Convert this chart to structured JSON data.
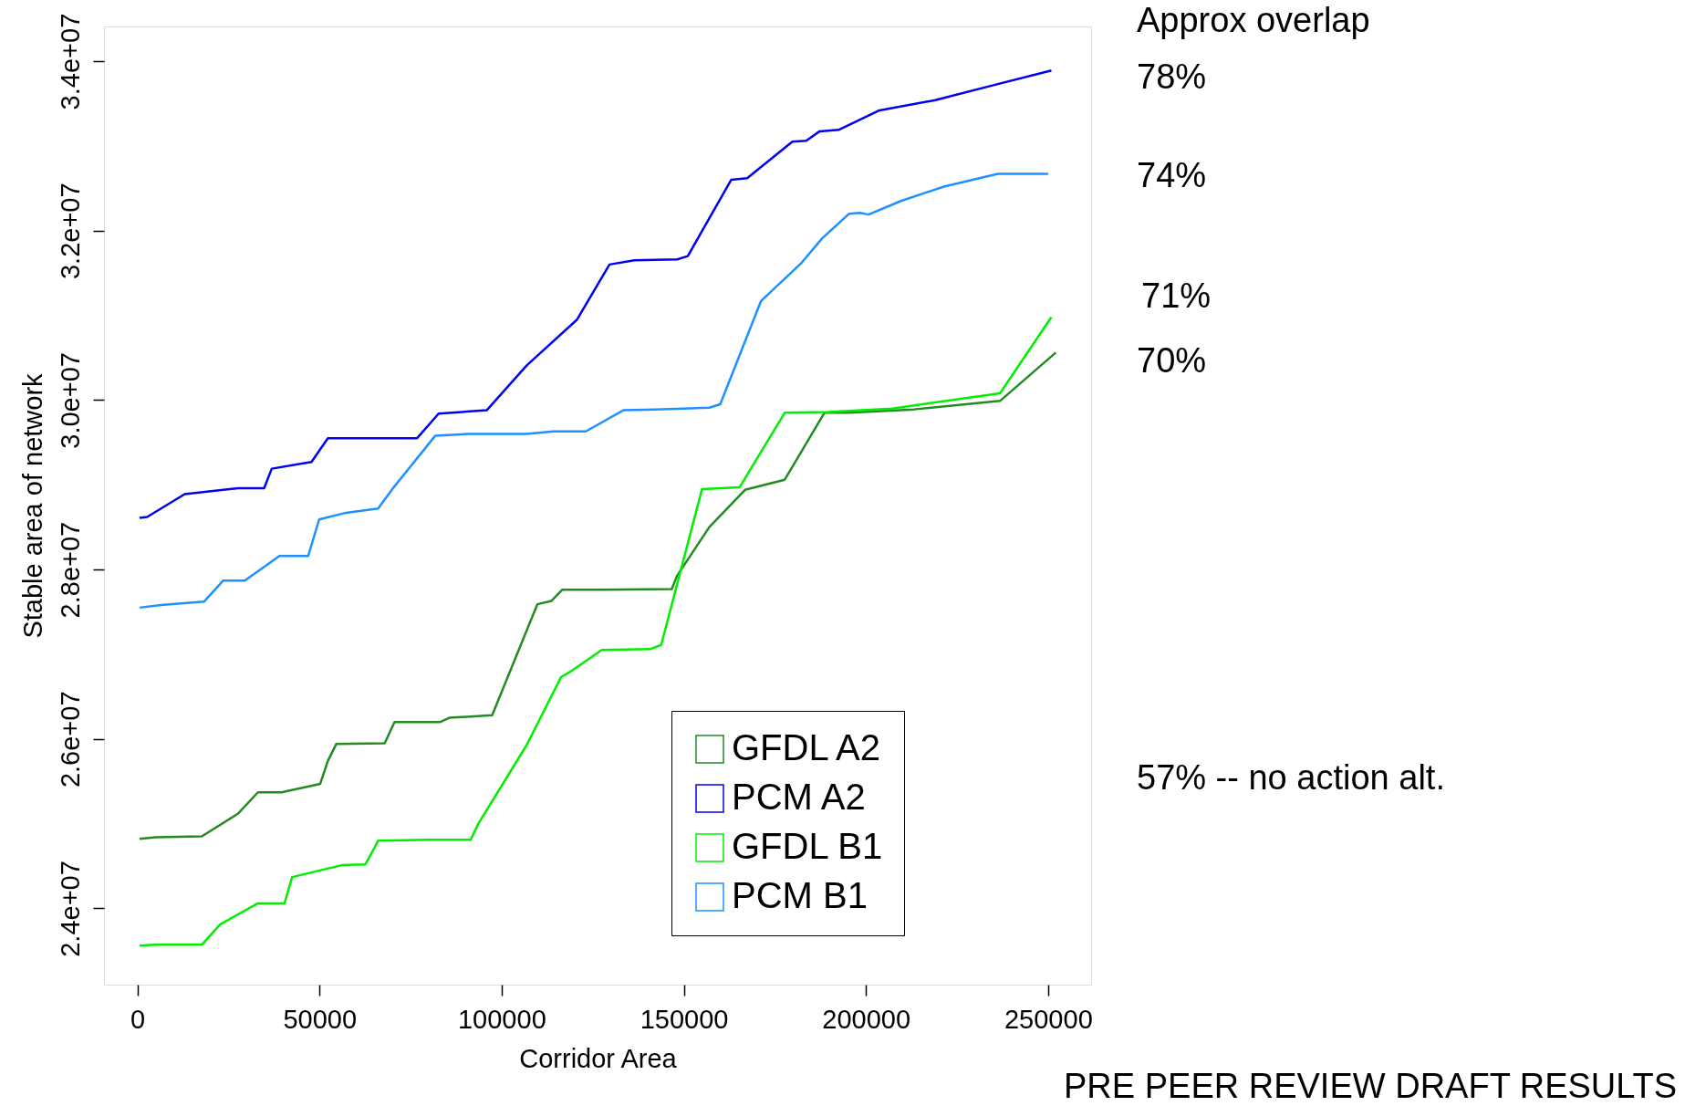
{
  "chart_data": {
    "type": "line",
    "xlabel": "Corridor Area",
    "ylabel": "Stable area of network",
    "xlim": [
      -9150,
      261800
    ],
    "ylim": [
      23100000,
      34410000
    ],
    "xticks": [
      0,
      50000,
      100000,
      150000,
      200000,
      250000
    ],
    "yticks": [
      {
        "value": 24000000,
        "label": "2.4e+07"
      },
      {
        "value": 26000000,
        "label": "2.6e+07"
      },
      {
        "value": 28000000,
        "label": "2.8e+07"
      },
      {
        "value": 30000000,
        "label": "3.0e+07"
      },
      {
        "value": 32000000,
        "label": "3.2e+07"
      },
      {
        "value": 34000000,
        "label": "3.4e+07"
      }
    ],
    "grid": false,
    "legend": "bottom right",
    "marker": "none",
    "line_style": "solid",
    "annotations": [
      "Approx overlap",
      "78%",
      "74%",
      "71%",
      "70%",
      "57% -- no action alt.",
      "PRE PEER REVIEW DRAFT RESULTS"
    ],
    "series": [
      {
        "name": "GFDL A2",
        "color": "#228b22",
        "x": [
          590,
          5000,
          17700,
          27700,
          33100,
          39600,
          50200,
          52300,
          54600,
          67900,
          70600,
          83200,
          85600,
          97400,
          109800,
          113700,
          116600,
          127500,
          146700,
          148200,
          157000,
          166800,
          177700,
          188600,
          195400,
          213100,
          236800,
          252100
        ],
        "values": [
          24820000,
          24840000,
          24850000,
          25120000,
          25370000,
          25370000,
          25470000,
          25740000,
          25940000,
          25950000,
          26200000,
          26200000,
          26250000,
          26280000,
          27590000,
          27630000,
          27760000,
          27760000,
          27770000,
          27930000,
          28500000,
          28940000,
          29060000,
          29850000,
          29850000,
          29890000,
          29990000,
          30560000
        ]
      },
      {
        "name": "PCM A2",
        "color": "#0000ee",
        "x": [
          590,
          2700,
          13000,
          27700,
          34800,
          36900,
          47800,
          52300,
          76800,
          82700,
          95900,
          106900,
          120700,
          129600,
          136400,
          148200,
          151100,
          163000,
          167400,
          179800,
          183600,
          187200,
          192500,
          203700,
          219000,
          236200,
          250900
        ],
        "values": [
          28610000,
          28620000,
          28890000,
          28960000,
          28960000,
          29190000,
          29270000,
          29550000,
          29550000,
          29840000,
          29880000,
          30410000,
          30950000,
          31600000,
          31650000,
          31660000,
          31700000,
          32600000,
          32620000,
          33050000,
          33060000,
          33170000,
          33190000,
          33420000,
          33540000,
          33730000,
          33890000
        ]
      },
      {
        "name": "GFDL B1",
        "color": "#00ee00",
        "x": [
          590,
          5000,
          17700,
          22700,
          33100,
          40400,
          42500,
          56100,
          62600,
          64900,
          66100,
          80300,
          91500,
          93600,
          106900,
          116300,
          118700,
          127500,
          140800,
          143800,
          155000,
          165300,
          177700,
          189500,
          207200,
          236800,
          250900
        ],
        "values": [
          23560000,
          23570000,
          23570000,
          23810000,
          24060000,
          24060000,
          24370000,
          24510000,
          24520000,
          24700000,
          24800000,
          24810000,
          24810000,
          25000000,
          25930000,
          26730000,
          26790000,
          27050000,
          27060000,
          27110000,
          28950000,
          28970000,
          29850000,
          29860000,
          29900000,
          30080000,
          30980000
        ]
      },
      {
        "name": "PCM B1",
        "color": "#1e90ff",
        "x": [
          590,
          6500,
          18300,
          23600,
          29500,
          39000,
          46900,
          49900,
          57300,
          66100,
          70000,
          81800,
          90600,
          106900,
          114200,
          123100,
          133400,
          142300,
          157000,
          160000,
          171200,
          182100,
          188000,
          195400,
          198400,
          200700,
          209600,
          221400,
          236200,
          250000
        ],
        "values": [
          27550000,
          27580000,
          27620000,
          27870000,
          27870000,
          28160000,
          28160000,
          28590000,
          28670000,
          28720000,
          28950000,
          29580000,
          29600000,
          29600000,
          29630000,
          29630000,
          29880000,
          29890000,
          29910000,
          29950000,
          31170000,
          31610000,
          31910000,
          32200000,
          32210000,
          32190000,
          32350000,
          32520000,
          32670000,
          32670000
        ]
      }
    ]
  }
}
